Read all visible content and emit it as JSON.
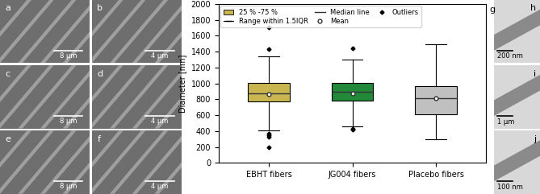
{
  "sem_panels": [
    {
      "label": "a",
      "scale_bar": "8 µm"
    },
    {
      "label": "b",
      "scale_bar": "4 µm"
    },
    {
      "label": "c",
      "scale_bar": "8 µm"
    },
    {
      "label": "d",
      "scale_bar": "4 µm"
    },
    {
      "label": "e",
      "scale_bar": "8 µm"
    },
    {
      "label": "f",
      "scale_bar": "4 µm"
    }
  ],
  "tem_panels": [
    {
      "label": "h",
      "scale_bar": "200 nm"
    },
    {
      "label": "i",
      "scale_bar": "1 µm"
    },
    {
      "label": "j",
      "scale_bar": "100 nm"
    }
  ],
  "chart_data": {
    "type": "box",
    "panel_label": "g",
    "y_label": "Diameter [nm]",
    "categories": [
      "EBHT fibers",
      "JG004 fibers",
      "Placebo fibers"
    ],
    "series": [
      {
        "name": "EBHT fibers",
        "color": "#c9b651",
        "q1": 770,
        "median": 870,
        "q3": 1010,
        "mean": 865,
        "whisker_low": 410,
        "whisker_high": 1340,
        "outliers": [
          1700,
          1430,
          370,
          350,
          330,
          200
        ]
      },
      {
        "name": "JG004 fibers",
        "color": "#23893a",
        "q1": 780,
        "median": 890,
        "q3": 1005,
        "mean": 875,
        "whisker_low": 460,
        "whisker_high": 1300,
        "outliers": [
          1440,
          430,
          420
        ]
      },
      {
        "name": "Placebo fibers",
        "color": "#c0c0c0",
        "q1": 610,
        "median": 810,
        "q3": 970,
        "mean": 810,
        "whisker_low": 300,
        "whisker_high": 1490,
        "outliers": []
      }
    ],
    "legend_labels": {
      "box": "25 % -75 %",
      "whisker": "Range within 1.5IQR",
      "median": "Median line",
      "mean": "Mean",
      "outliers": "Outliers"
    },
    "legend": "upper left",
    "grid": false,
    "ylim": [
      0,
      2000
    ],
    "yticks": [
      0,
      200,
      400,
      600,
      800,
      1000,
      1200,
      1400,
      1600,
      1800,
      2000
    ]
  }
}
